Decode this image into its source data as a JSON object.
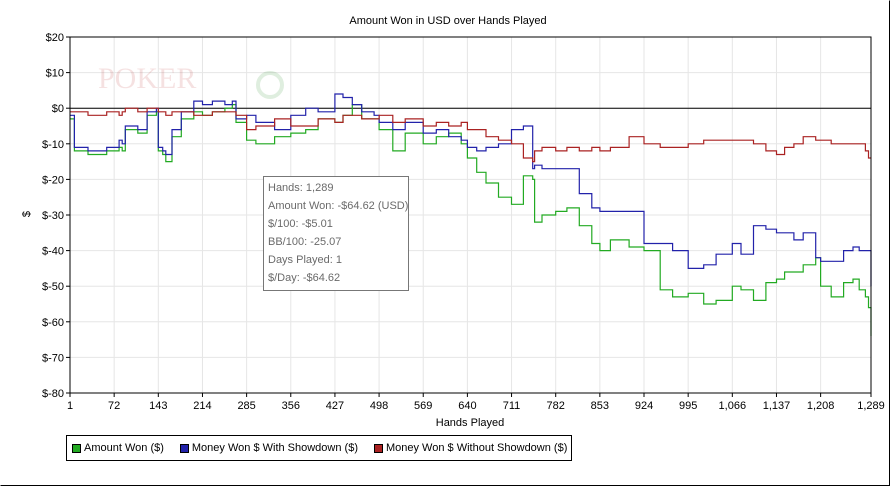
{
  "chart_data": {
    "type": "line",
    "title": "Amount Won in USD over Hands Played",
    "xlabel": "Hands Played",
    "ylabel": "$",
    "xlim": [
      1,
      1289
    ],
    "ylim": [
      -80,
      20
    ],
    "x_ticks": [
      1,
      72,
      143,
      214,
      285,
      356,
      427,
      498,
      569,
      640,
      711,
      782,
      853,
      924,
      995,
      1066,
      1137,
      1208,
      1289
    ],
    "x_tick_labels": [
      "1",
      "72",
      "143",
      "214",
      "285",
      "356",
      "427",
      "498",
      "569",
      "640",
      "711",
      "782",
      "853",
      "924",
      "995",
      "1,066",
      "1,137",
      "1,208",
      "1,289"
    ],
    "y_ticks": [
      20,
      10,
      0,
      -10,
      -20,
      -30,
      -40,
      -50,
      -60,
      -70,
      -80
    ],
    "y_tick_labels": [
      "$20",
      "$10",
      "$0",
      "$-10",
      "$-20",
      "$-30",
      "$-40",
      "$-50",
      "$-60",
      "$-70",
      "$-80"
    ],
    "grid": true,
    "legend_position": "bottom-left",
    "series": [
      {
        "name": "Amount Won ($)",
        "color": "#22aa22",
        "x": [
          1,
          8,
          30,
          60,
          80,
          85,
          90,
          110,
          125,
          140,
          143,
          150,
          155,
          165,
          180,
          200,
          214,
          230,
          250,
          262,
          268,
          285,
          300,
          330,
          356,
          380,
          400,
          427,
          440,
          455,
          470,
          490,
          498,
          520,
          540,
          569,
          590,
          610,
          630,
          640,
          655,
          670,
          690,
          711,
          730,
          745,
          748,
          760,
          782,
          800,
          820,
          840,
          853,
          870,
          900,
          924,
          950,
          970,
          995,
          1020,
          1040,
          1066,
          1080,
          1100,
          1120,
          1137,
          1150,
          1165,
          1180,
          1200,
          1208,
          1225,
          1245,
          1260,
          1270,
          1280,
          1285,
          1289
        ],
        "y": [
          -3,
          -12,
          -13,
          -12,
          -11,
          -12,
          -6,
          -7,
          -2,
          -1,
          -12,
          -13,
          -15,
          -8,
          -3,
          -1,
          -2,
          -1,
          0,
          1,
          -4,
          -9,
          -10,
          -8,
          -7,
          -6,
          -3,
          -4,
          -2,
          1,
          -3,
          -3,
          -6,
          -12,
          -7,
          -10,
          -8,
          -7,
          -10,
          -14,
          -18,
          -21,
          -25,
          -27,
          -19,
          -20,
          -32,
          -30,
          -29,
          -28,
          -33,
          -38,
          -40,
          -37,
          -39,
          -40,
          -51,
          -53,
          -52,
          -55,
          -54,
          -50,
          -51,
          -54,
          -49,
          -48,
          -46,
          -46,
          -44,
          -42,
          -50,
          -53,
          -49,
          -48,
          -51,
          -53,
          -56,
          -64
        ]
      },
      {
        "name": "Money Won $ With Showdown ($)",
        "color": "#2222aa",
        "x": [
          1,
          8,
          30,
          60,
          80,
          85,
          90,
          110,
          125,
          140,
          143,
          150,
          155,
          165,
          180,
          200,
          214,
          230,
          250,
          262,
          268,
          285,
          300,
          330,
          356,
          380,
          400,
          427,
          440,
          455,
          470,
          490,
          498,
          520,
          540,
          569,
          590,
          610,
          630,
          640,
          655,
          670,
          690,
          711,
          730,
          745,
          748,
          760,
          782,
          800,
          820,
          840,
          853,
          870,
          900,
          924,
          950,
          970,
          995,
          1020,
          1040,
          1066,
          1080,
          1100,
          1120,
          1137,
          1150,
          1165,
          1180,
          1200,
          1208,
          1225,
          1245,
          1260,
          1270,
          1280,
          1285,
          1289
        ],
        "y": [
          -2,
          -11,
          -12,
          -11,
          -9,
          -10,
          -5,
          -6,
          -1,
          0,
          -11,
          -12,
          -13,
          -6,
          -1,
          2,
          1,
          2,
          1,
          2,
          -3,
          -2,
          -4,
          -6,
          -2,
          0,
          -1,
          4,
          3,
          1,
          -1,
          -2,
          -4,
          -6,
          -4,
          -7,
          -6,
          -8,
          -9,
          -11,
          -12,
          -11,
          -10,
          -6,
          -5,
          -17,
          -16,
          -17,
          -17,
          -17,
          -24,
          -28,
          -29,
          -29,
          -29,
          -38,
          -38,
          -40,
          -45,
          -44,
          -41,
          -38,
          -41,
          -33,
          -34,
          -35,
          -35,
          -37,
          -35,
          -42,
          -43,
          -43,
          -40,
          -39,
          -40,
          -40,
          -40,
          -50
        ]
      },
      {
        "name": "Money Won $ Without Showdown ($)",
        "color": "#aa2222",
        "x": [
          1,
          8,
          30,
          60,
          80,
          85,
          90,
          110,
          125,
          140,
          143,
          150,
          155,
          165,
          180,
          200,
          214,
          230,
          250,
          262,
          268,
          285,
          300,
          330,
          356,
          380,
          400,
          427,
          440,
          455,
          470,
          490,
          498,
          520,
          540,
          569,
          590,
          610,
          630,
          640,
          655,
          670,
          690,
          711,
          730,
          745,
          748,
          760,
          782,
          800,
          820,
          840,
          853,
          870,
          900,
          924,
          950,
          970,
          995,
          1020,
          1040,
          1066,
          1080,
          1100,
          1120,
          1137,
          1150,
          1165,
          1180,
          1200,
          1208,
          1225,
          1245,
          1260,
          1270,
          1280,
          1285,
          1289
        ],
        "y": [
          -1,
          -1,
          -2,
          -1,
          -2,
          -1,
          0,
          -1,
          0,
          0,
          -1,
          -1,
          -2,
          -1,
          -1,
          -2,
          -2,
          -1,
          -1,
          -1,
          -2,
          -6,
          -5,
          -3,
          -5,
          -5,
          -3,
          -4,
          -2,
          -2,
          -3,
          -3,
          -2,
          -4,
          -3,
          -5,
          -4,
          -5,
          -4,
          -6,
          -6,
          -8,
          -9,
          -10,
          -14,
          -15,
          -12,
          -11,
          -12,
          -11,
          -12,
          -11,
          -12,
          -11,
          -8,
          -10,
          -11,
          -11,
          -10,
          -9,
          -9,
          -9,
          -9,
          -10,
          -12,
          -13,
          -11,
          -10,
          -8,
          -9,
          -9,
          -10,
          -10,
          -10,
          -10,
          -12,
          -14,
          -14
        ]
      }
    ]
  },
  "tooltip": {
    "lines": [
      "Hands: 1,289",
      "Amount Won: -$64.62 (USD)",
      "$/100: -$5.01",
      "BB/100: -25.07",
      "Days Played: 1",
      "$/Day: -$64.62"
    ]
  },
  "watermark": "POKER"
}
